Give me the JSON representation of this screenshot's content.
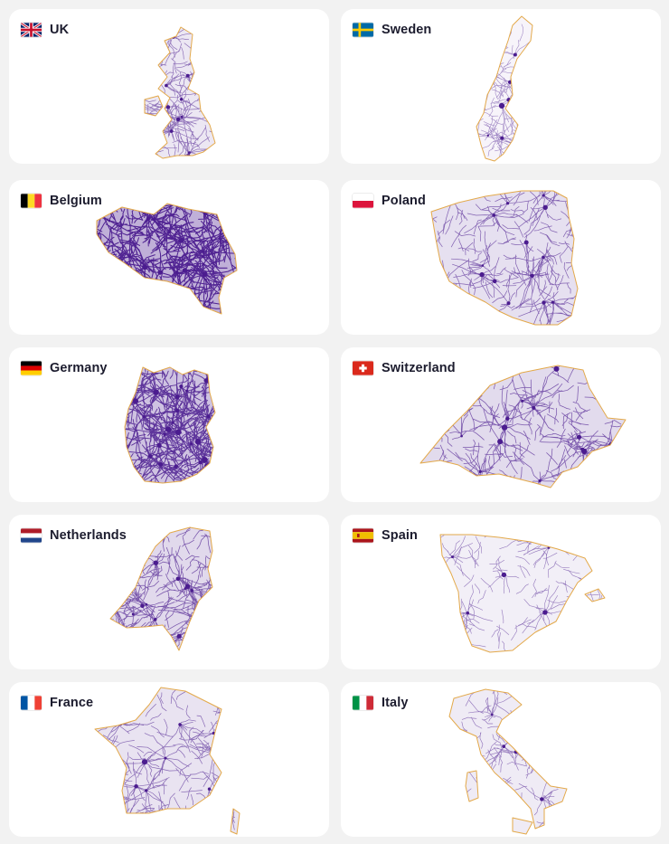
{
  "colors": {
    "network": "#4b1c8f",
    "border": "#e3a94a",
    "card_bg": "#ffffff",
    "page_bg": "#f2f2f2"
  },
  "cards": [
    {
      "name": "UK",
      "flag": "uk-flag-icon"
    },
    {
      "name": "Sweden",
      "flag": "sweden-flag-icon"
    },
    {
      "name": "Belgium",
      "flag": "belgium-flag-icon"
    },
    {
      "name": "Poland",
      "flag": "poland-flag-icon"
    },
    {
      "name": "Germany",
      "flag": "germany-flag-icon"
    },
    {
      "name": "Switzerland",
      "flag": "switzerland-flag-icon"
    },
    {
      "name": "Netherlands",
      "flag": "netherlands-flag-icon"
    },
    {
      "name": "Spain",
      "flag": "spain-flag-icon"
    },
    {
      "name": "France",
      "flag": "france-flag-icon"
    },
    {
      "name": "Italy",
      "flag": "italy-flag-icon"
    }
  ]
}
